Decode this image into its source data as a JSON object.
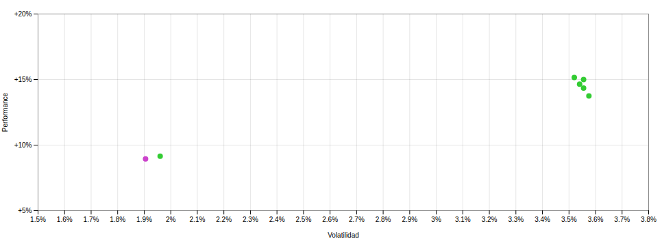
{
  "chart_data": {
    "type": "scatter",
    "xlabel": "Volatilidad",
    "ylabel": "Performance",
    "x": [
      0.01905,
      0.0196,
      0.0352,
      0.03555,
      0.0354,
      0.03555,
      0.03575
    ],
    "values": [
      0.0895,
      0.0915,
      0.1515,
      0.15,
      0.1465,
      0.1435,
      0.1375
    ],
    "colors": [
      "#cc44cc",
      "#33cc33",
      "#33cc33",
      "#33cc33",
      "#33cc33",
      "#33cc33",
      "#33cc33"
    ],
    "xlim": [
      0.015,
      0.038
    ],
    "ylim": [
      0.05,
      0.2
    ],
    "xticks": [
      {
        "value": 0.015,
        "label": "1.5%"
      },
      {
        "value": 0.016,
        "label": "1.6%"
      },
      {
        "value": 0.017,
        "label": "1.7%"
      },
      {
        "value": 0.018,
        "label": "1.8%"
      },
      {
        "value": 0.019,
        "label": "1.9%"
      },
      {
        "value": 0.02,
        "label": "2%"
      },
      {
        "value": 0.021,
        "label": "2.1%"
      },
      {
        "value": 0.022,
        "label": "2.2%"
      },
      {
        "value": 0.023,
        "label": "2.3%"
      },
      {
        "value": 0.024,
        "label": "2.4%"
      },
      {
        "value": 0.025,
        "label": "2.5%"
      },
      {
        "value": 0.026,
        "label": "2.6%"
      },
      {
        "value": 0.027,
        "label": "2.7%"
      },
      {
        "value": 0.028,
        "label": "2.8%"
      },
      {
        "value": 0.029,
        "label": "2.9%"
      },
      {
        "value": 0.03,
        "label": "3%"
      },
      {
        "value": 0.031,
        "label": "3.1%"
      },
      {
        "value": 0.032,
        "label": "3.2%"
      },
      {
        "value": 0.033,
        "label": "3.3%"
      },
      {
        "value": 0.034,
        "label": "3.4%"
      },
      {
        "value": 0.035,
        "label": "3.5%"
      },
      {
        "value": 0.036,
        "label": "3.6%"
      },
      {
        "value": 0.037,
        "label": "3.7%"
      },
      {
        "value": 0.038,
        "label": "3.8%"
      }
    ],
    "yticks": [
      {
        "value": 0.05,
        "label": "+5%"
      },
      {
        "value": 0.1,
        "label": "+10%"
      },
      {
        "value": 0.15,
        "label": "+15%"
      },
      {
        "value": 0.2,
        "label": "+20%"
      }
    ],
    "grid": true
  }
}
